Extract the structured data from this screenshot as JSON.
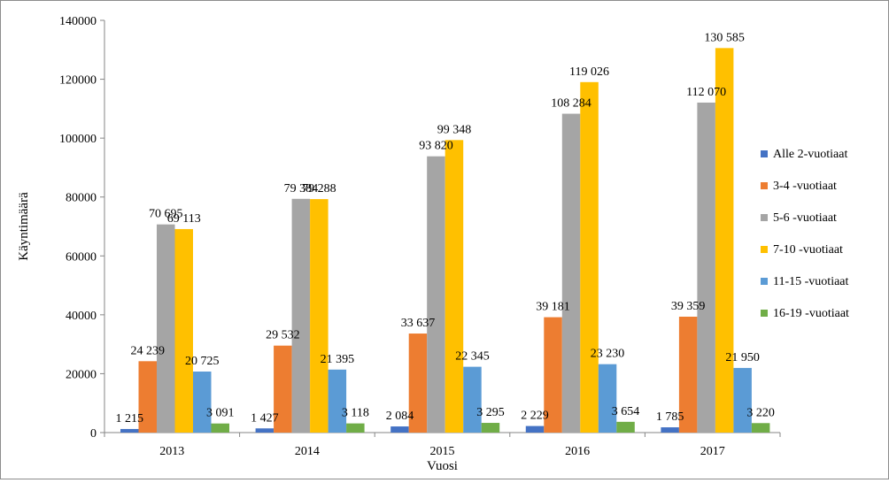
{
  "chart_data": {
    "type": "bar",
    "xlabel": "Vuosi",
    "ylabel": "Käyntimäärä",
    "ylim": [
      0,
      140000
    ],
    "yticks": [
      0,
      20000,
      40000,
      60000,
      80000,
      100000,
      120000,
      140000
    ],
    "ytick_labels": [
      "0",
      "20000",
      "40000",
      "60000",
      "80000",
      "100000",
      "120000",
      "140000"
    ],
    "categories": [
      "2013",
      "2014",
      "2015",
      "2016",
      "2017"
    ],
    "grid": false,
    "legend_position": "right",
    "series": [
      {
        "name": "Alle 2-vuotiaat",
        "color": "#4472C4",
        "values": [
          1215,
          1427,
          2084,
          2229,
          1785
        ],
        "labels": [
          "1 215",
          "1 427",
          "2 084",
          "2 229",
          "1 785"
        ]
      },
      {
        "name": "3-4 -vuotiaat",
        "color": "#ED7D31",
        "values": [
          24239,
          29532,
          33637,
          39181,
          39359
        ],
        "labels": [
          "24 239",
          "29 532",
          "33 637",
          "39 181",
          "39 359"
        ]
      },
      {
        "name": "5-6 -vuotiaat",
        "color": "#A5A5A5",
        "values": [
          70695,
          79384,
          93820,
          108284,
          112070
        ],
        "labels": [
          "70 695",
          "79 384",
          "93 820",
          "108 284",
          "112 070"
        ]
      },
      {
        "name": "7-10 -vuotiaat",
        "color": "#FFC000",
        "values": [
          69113,
          79288,
          99348,
          119026,
          130585
        ],
        "labels": [
          "69 113",
          "79 288",
          "99 348",
          "119 026",
          "130 585"
        ]
      },
      {
        "name": "11-15 -vuotiaat",
        "color": "#5B9BD5",
        "values": [
          20725,
          21395,
          22345,
          23230,
          21950
        ],
        "labels": [
          "20 725",
          "21 395",
          "22 345",
          "23 230",
          "21 950"
        ]
      },
      {
        "name": "16-19 -vuotiaat",
        "color": "#70AD47",
        "values": [
          3091,
          3118,
          3295,
          3654,
          3220
        ],
        "labels": [
          "3 091",
          "3 118",
          "3 295",
          "3 654",
          "3 220"
        ]
      }
    ]
  }
}
